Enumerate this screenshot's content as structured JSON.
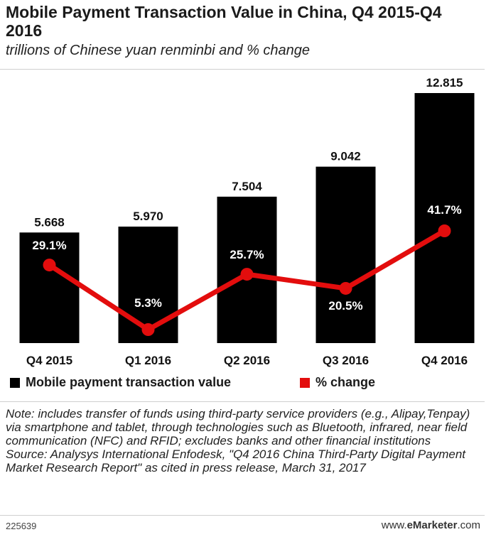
{
  "title": "Mobile Payment Transaction Value in China, Q4 2015-Q4 2016",
  "subtitle": "trillions of Chinese yuan renminbi and % change",
  "chart_data": {
    "type": "bar",
    "categories": [
      "Q4 2015",
      "Q1 2016",
      "Q2 2016",
      "Q3 2016",
      "Q4 2016"
    ],
    "series": [
      {
        "name": "Mobile payment transaction value",
        "kind": "bar",
        "values": [
          5.668,
          5.97,
          7.504,
          9.042,
          12.815
        ],
        "labels": [
          "5.668",
          "5.970",
          "7.504",
          "9.042",
          "12.815"
        ],
        "color": "#000000"
      },
      {
        "name": "% change",
        "kind": "line",
        "values": [
          29.1,
          5.3,
          25.7,
          20.5,
          41.7
        ],
        "labels": [
          "29.1%",
          "5.3%",
          "25.7%",
          "20.5%",
          "41.7%"
        ],
        "color": "#e30d0d"
      }
    ],
    "legend_position": "bottom",
    "grid": false
  },
  "legend": {
    "bar_label": "Mobile payment transaction value",
    "line_label": "% change"
  },
  "notes": {
    "note": "Note: includes transfer of funds using third-party service providers (e.g., Alipay,Tenpay) via smartphone and tablet, through technologies such as Bluetooth, infrared, near field communication (NFC) and RFID; excludes banks and other financial institutions",
    "source": "Source: Analysys International Enfodesk, \"Q4 2016 China Third-Party Digital Payment Market Research Report\" as cited in press release, March 31, 2017"
  },
  "footer": {
    "chart_id": "225639",
    "brand_prefix": "www.",
    "brand_name": "eMarketer",
    "brand_suffix": ".com"
  }
}
